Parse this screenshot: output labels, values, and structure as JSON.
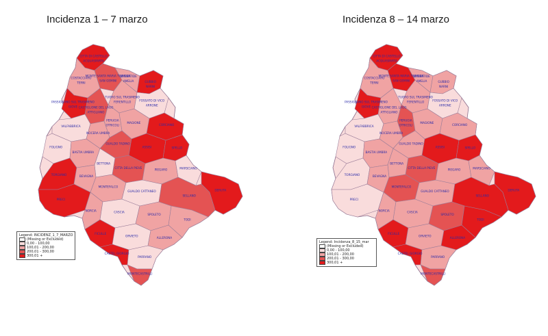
{
  "maps": [
    {
      "title": "Incidenza 1 – 7 marzo",
      "legend_title": "Legend: INCIDENZ_1_7_MARZO",
      "labels": [
        "CITTA DI CASTELLO",
        "MONTE SANTA MARIA TIBERINA",
        "UMBERTIDE",
        "GUBBIO",
        "COSTACCIARO",
        "FOSSATO DI VICO",
        "TUORO SUL TRASIMENO",
        "PASSIGNANO SUL TRASIMENO",
        "CASTIGLIONE DEL LAGO",
        "PERUGIA",
        "MAGIONE",
        "CORCIANO",
        "VALFABBRICA",
        "NOCERA UMBRA",
        "GUALDO TADINO",
        "ASSISI",
        "SPELLO",
        "FOLIGNO",
        "BASTIA UMBRA",
        "BETTONA",
        "CITTA DELLA PIEVE",
        "PIEGARO",
        "MARSCIANO",
        "DERUTA",
        "TORGIANO",
        "BEVAGNA",
        "MONTEFALCO",
        "GUALDO CATTANEO",
        "SELLANO",
        "PRECI",
        "NORCIA",
        "CASCIA",
        "SPOLETO",
        "TODI",
        "FICULLE",
        "ORVIETO",
        "ALLERONA",
        "CASTEL GIORGIO",
        "PARRANO",
        "MONTECASTRILLI",
        "ACQUASPARTA",
        "SAN GEMINI",
        "AMELIA",
        "NARNI",
        "TERNI",
        "ARRONE",
        "FERENTILLO",
        "GIOVE",
        "ATTIGLIANO",
        "OTRICOLI"
      ],
      "legend_items": [
        "(Missing or Excluded)",
        "0,00 - 100,00",
        "100,01 - 200,00",
        "200,01 - 300,00",
        "300,01 +"
      ],
      "legend_colors": [
        "#ffffff",
        "#f9dcdc",
        "#f0a3a3",
        "#e45353",
        "#e31a1c"
      ]
    },
    {
      "title": "Incidenza 8 – 14 marzo",
      "legend_title": "Legend: Incidenza_8_15_mar",
      "labels": [
        "CITTA DI CASTELLO",
        "MONTE SANTA MARIA TIBERINA",
        "UMBERTIDE",
        "GUBBIO",
        "COSTACCIARO",
        "FOSSATO DI VICO",
        "TUORO SUL TRASIMENO",
        "PASSIGNANO SUL TRASIMENO",
        "CASTIGLIONE DEL LAGO",
        "PERUGIA",
        "MAGIONE",
        "CORCIANO",
        "VALFABBRICA",
        "NOCERA UMBRA",
        "GUALDO TADINO",
        "ASSISI",
        "SPELLO",
        "FOLIGNO",
        "BASTIA UMBRA",
        "BETTONA",
        "CITTA DELLA PIEVE",
        "PIEGARO",
        "MARSCIANO",
        "DERUTA",
        "TORGIANO",
        "BEVAGNA",
        "MONTEFALCO",
        "GUALDO CATTANEO",
        "SELLANO",
        "PRECI",
        "NORCIA",
        "CASCIA",
        "SPOLETO",
        "TODI",
        "FICULLE",
        "ORVIETO",
        "ALLERONA",
        "CASTEL GIORGIO",
        "PARRANO",
        "MONTECASTRILLI",
        "ACQUASPARTA",
        "SAN GEMINI",
        "AMELIA",
        "NARNI",
        "TERNI",
        "ARRONE",
        "FERENTILLO",
        "GIOVE",
        "ATTIGLIANO",
        "OTRICOLI"
      ],
      "legend_items": [
        "(Missing or Excluded)",
        "0,00 - 100,00",
        "100,01 - 200,00",
        "200,01 - 300,00",
        "300,01 +"
      ],
      "legend_colors": [
        "#ffffff",
        "#f9dcdc",
        "#f0a3a3",
        "#e45353",
        "#e31a1c"
      ]
    }
  ]
}
